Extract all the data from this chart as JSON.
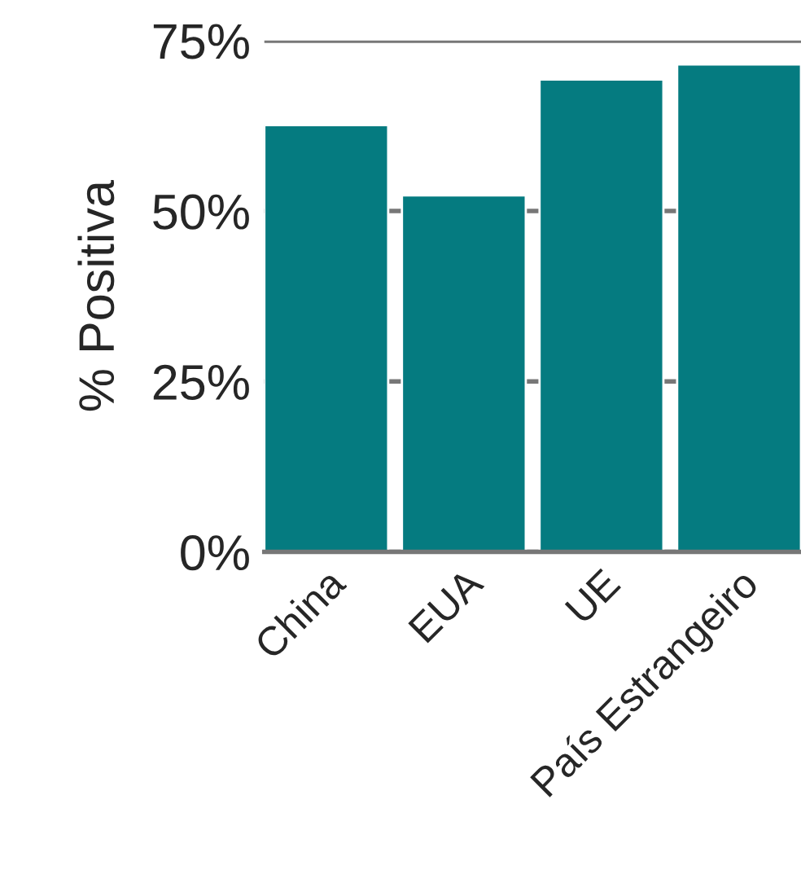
{
  "chart_data": {
    "type": "bar",
    "ylabel": "% Positiva",
    "categories": [
      "China",
      "EUA",
      "UE",
      "País Estrangeiro"
    ],
    "values": [
      62.6,
      52.3,
      69.3,
      71.5
    ],
    "color": "#057b80",
    "ylim": [
      0,
      75
    ],
    "yticks": [
      {
        "value": 0,
        "label": "0%"
      },
      {
        "value": 25,
        "label": "25%"
      },
      {
        "value": 50,
        "label": "50%"
      },
      {
        "value": 75,
        "label": "75%"
      }
    ],
    "grid": "y",
    "legend": false
  }
}
